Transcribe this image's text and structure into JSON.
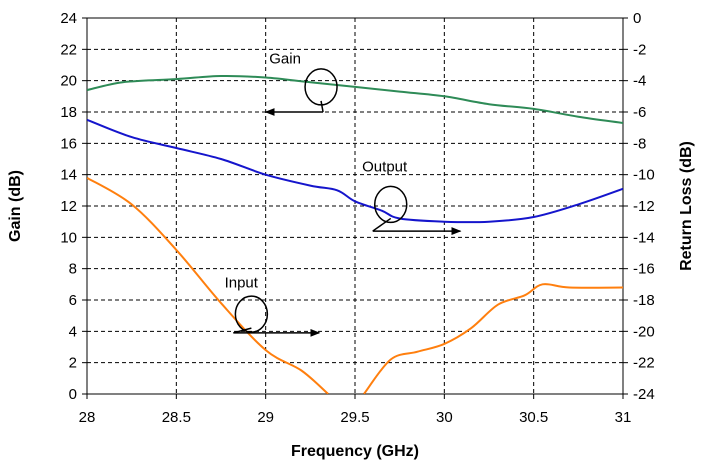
{
  "chart_data": {
    "type": "line",
    "xlabel": "Frequency (GHz)",
    "ylabel": "Gain (dB)",
    "y2label": "Return Loss (dB)",
    "xlim": [
      28,
      31
    ],
    "ylim": [
      0,
      24
    ],
    "y2lim": [
      -24,
      0
    ],
    "x_ticks": [
      "28",
      "28.5",
      "29",
      "29.5",
      "30",
      "30.5",
      "31"
    ],
    "x_tick_values": [
      28,
      28.5,
      29,
      29.5,
      30,
      30.5,
      31
    ],
    "y_ticks": [
      "0",
      "2",
      "4",
      "6",
      "8",
      "10",
      "12",
      "14",
      "16",
      "18",
      "20",
      "22",
      "24"
    ],
    "y_tick_values": [
      0,
      2,
      4,
      6,
      8,
      10,
      12,
      14,
      16,
      18,
      20,
      22,
      24
    ],
    "y2_ticks": [
      "0",
      "-2",
      "-4",
      "-6",
      "-8",
      "-10",
      "-12",
      "-14",
      "-16",
      "-18",
      "-20",
      "-22",
      "-24"
    ],
    "y2_tick_values": [
      0,
      -2,
      -4,
      -6,
      -8,
      -10,
      -12,
      -14,
      -16,
      -18,
      -20,
      -22,
      -24
    ],
    "grid": true,
    "series": [
      {
        "name": "Gain",
        "axis": "left",
        "color": "#2e8b57",
        "x": [
          28.0,
          28.2,
          28.5,
          28.75,
          29.0,
          29.25,
          29.5,
          29.75,
          30.0,
          30.25,
          30.5,
          30.75,
          31.0
        ],
        "y": [
          19.4,
          19.9,
          20.1,
          20.3,
          20.2,
          19.9,
          19.6,
          19.3,
          19.0,
          18.5,
          18.2,
          17.7,
          17.3
        ]
      },
      {
        "name": "Output",
        "axis": "right",
        "color": "#1515cc",
        "x": [
          28.0,
          28.25,
          28.5,
          28.75,
          29.0,
          29.25,
          29.4,
          29.5,
          29.65,
          29.75,
          30.0,
          30.25,
          30.5,
          30.75,
          31.0
        ],
        "y": [
          -6.5,
          -7.6,
          -8.3,
          -9.0,
          -10.0,
          -10.7,
          -11.0,
          -11.7,
          -12.3,
          -12.8,
          -13.0,
          -13.0,
          -12.7,
          -11.9,
          -10.9
        ]
      },
      {
        "name": "Input",
        "axis": "right",
        "color": "#ff7f0e",
        "x": [
          28.0,
          28.25,
          28.5,
          28.75,
          29.0,
          29.2,
          29.35,
          29.55,
          29.7,
          29.85,
          30.0,
          30.15,
          30.3,
          30.45,
          30.55,
          30.7,
          31.0
        ],
        "y": [
          -10.2,
          -11.9,
          -14.8,
          -18.2,
          -21.2,
          -22.5,
          -24.0,
          -24.0,
          -21.8,
          -21.3,
          -20.8,
          -19.8,
          -18.3,
          -17.7,
          -17.0,
          -17.2,
          -17.2
        ]
      }
    ],
    "annotations": [
      {
        "text": "Gain",
        "label_x": 29.02,
        "label_y": 21.1,
        "ellipse_x": 29.31,
        "ellipse_y": 19.6,
        "arrow_to_x": 29.0,
        "arrow_y": 18.0,
        "direction": "left"
      },
      {
        "text": "Output",
        "label_x": 29.54,
        "label_y": 14.2,
        "ellipse_x": 29.7,
        "ellipse_y": 12.1,
        "arrow_to_x": 30.09,
        "arrow_y": 10.4,
        "direction": "right"
      },
      {
        "text": "Input",
        "label_x": 28.77,
        "label_y": 6.8,
        "ellipse_x": 28.92,
        "ellipse_y": 5.1,
        "arrow_to_x": 29.3,
        "arrow_y": 3.9,
        "direction": "right"
      }
    ]
  }
}
